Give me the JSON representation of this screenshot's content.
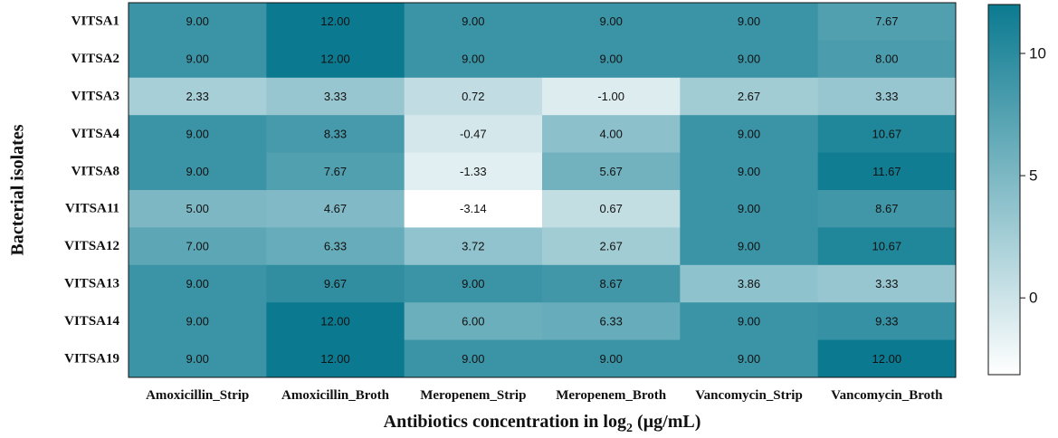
{
  "chart_data": {
    "type": "heatmap",
    "title": "",
    "xlabel": "Antibiotics concentration in log",
    "xlabel_subscript": "2",
    "xlabel_unit": " (µg/mL)",
    "ylabel": "Bacterial isolates",
    "columns": [
      "Amoxicillin_Strip",
      "Amoxicillin_Broth",
      "Meropenem_Strip",
      "Meropenem_Broth",
      "Vancomycin_Strip",
      "Vancomycin_Broth"
    ],
    "rows": [
      "VITSA1",
      "VITSA2",
      "VITSA3",
      "VITSA4",
      "VITSA8",
      "VITSA11",
      "VITSA12",
      "VITSA13",
      "VITSA14",
      "VITSA19"
    ],
    "values": [
      [
        9.0,
        12.0,
        9.0,
        9.0,
        9.0,
        7.67
      ],
      [
        9.0,
        12.0,
        9.0,
        9.0,
        9.0,
        8.0
      ],
      [
        2.33,
        3.33,
        0.72,
        -1.0,
        2.67,
        3.33
      ],
      [
        9.0,
        8.33,
        -0.47,
        4.0,
        9.0,
        10.67
      ],
      [
        9.0,
        7.67,
        -1.33,
        5.67,
        9.0,
        11.67
      ],
      [
        5.0,
        4.67,
        -3.14,
        0.67,
        9.0,
        8.67
      ],
      [
        7.0,
        6.33,
        3.72,
        2.67,
        9.0,
        10.67
      ],
      [
        9.0,
        9.67,
        9.0,
        8.67,
        3.86,
        3.33
      ],
      [
        9.0,
        12.0,
        6.0,
        6.33,
        9.0,
        9.33
      ],
      [
        9.0,
        12.0,
        9.0,
        9.0,
        9.0,
        12.0
      ]
    ],
    "value_format_decimals": 2,
    "color_scale": {
      "min": -3.14,
      "max": 12.0,
      "low_color": "#ffffff",
      "high_color": "#0b7a90",
      "ticks": [
        0,
        5,
        10
      ]
    },
    "colorbar_position": "right"
  }
}
